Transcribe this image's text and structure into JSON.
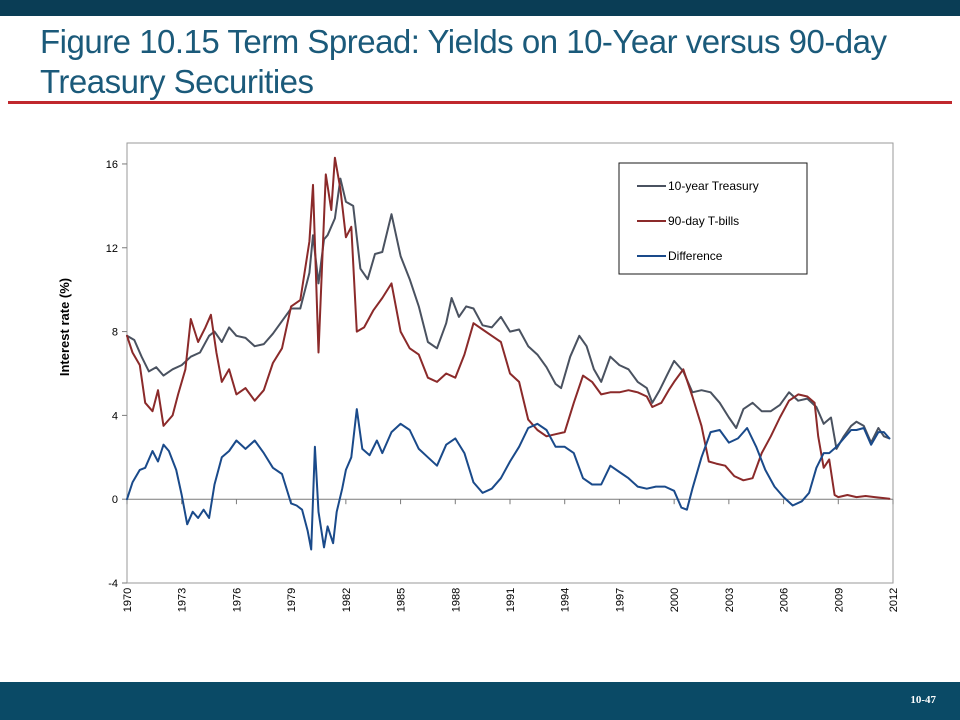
{
  "slide": {
    "title": "Figure 10.15 Term Spread: Yields on 10-Year versus 90-day Treasury Securities",
    "page_number": "10-47"
  },
  "colors": {
    "header_bar": "#0a3d55",
    "footer_bar": "#0a4a66",
    "title_text": "#1b5a7a",
    "title_rule": "#c0282d"
  },
  "chart_data": {
    "type": "line",
    "title": "",
    "xlabel": "",
    "ylabel": "Interest rate (%)",
    "xlim": [
      1970,
      2012
    ],
    "ylim": [
      -4,
      17
    ],
    "x_ticks": [
      1970,
      1973,
      1976,
      1979,
      1982,
      1985,
      1988,
      1991,
      1994,
      1997,
      2000,
      2003,
      2006,
      2009,
      2012
    ],
    "y_ticks": [
      -4,
      0,
      4,
      8,
      12,
      16
    ],
    "grid": false,
    "legend_position": "top-right",
    "series": [
      {
        "name": "10-year Treasury",
        "color": "#4a5260",
        "points": [
          [
            1970.0,
            7.8
          ],
          [
            1970.4,
            7.6
          ],
          [
            1970.8,
            6.8
          ],
          [
            1971.2,
            6.1
          ],
          [
            1971.6,
            6.3
          ],
          [
            1972.0,
            5.9
          ],
          [
            1972.5,
            6.2
          ],
          [
            1973.0,
            6.4
          ],
          [
            1973.5,
            6.8
          ],
          [
            1974.0,
            7.0
          ],
          [
            1974.5,
            7.8
          ],
          [
            1974.8,
            8.0
          ],
          [
            1975.2,
            7.5
          ],
          [
            1975.6,
            8.2
          ],
          [
            1976.0,
            7.8
          ],
          [
            1976.5,
            7.7
          ],
          [
            1977.0,
            7.3
          ],
          [
            1977.5,
            7.4
          ],
          [
            1978.0,
            7.9
          ],
          [
            1978.5,
            8.5
          ],
          [
            1979.0,
            9.1
          ],
          [
            1979.5,
            9.1
          ],
          [
            1980.0,
            10.8
          ],
          [
            1980.2,
            12.6
          ],
          [
            1980.5,
            10.3
          ],
          [
            1980.8,
            12.4
          ],
          [
            1981.0,
            12.6
          ],
          [
            1981.4,
            13.4
          ],
          [
            1981.7,
            15.3
          ],
          [
            1982.0,
            14.2
          ],
          [
            1982.4,
            14.0
          ],
          [
            1982.8,
            11.0
          ],
          [
            1983.2,
            10.5
          ],
          [
            1983.6,
            11.7
          ],
          [
            1984.0,
            11.8
          ],
          [
            1984.5,
            13.6
          ],
          [
            1985.0,
            11.6
          ],
          [
            1985.5,
            10.5
          ],
          [
            1986.0,
            9.2
          ],
          [
            1986.5,
            7.5
          ],
          [
            1987.0,
            7.2
          ],
          [
            1987.5,
            8.4
          ],
          [
            1987.8,
            9.6
          ],
          [
            1988.2,
            8.7
          ],
          [
            1988.6,
            9.2
          ],
          [
            1989.0,
            9.1
          ],
          [
            1989.5,
            8.3
          ],
          [
            1990.0,
            8.2
          ],
          [
            1990.5,
            8.7
          ],
          [
            1991.0,
            8.0
          ],
          [
            1991.5,
            8.1
          ],
          [
            1992.0,
            7.3
          ],
          [
            1992.5,
            6.9
          ],
          [
            1993.0,
            6.3
          ],
          [
            1993.5,
            5.5
          ],
          [
            1993.8,
            5.3
          ],
          [
            1994.3,
            6.8
          ],
          [
            1994.8,
            7.8
          ],
          [
            1995.2,
            7.3
          ],
          [
            1995.6,
            6.2
          ],
          [
            1996.0,
            5.6
          ],
          [
            1996.5,
            6.8
          ],
          [
            1997.0,
            6.4
          ],
          [
            1997.5,
            6.2
          ],
          [
            1998.0,
            5.6
          ],
          [
            1998.5,
            5.3
          ],
          [
            1998.8,
            4.6
          ],
          [
            1999.2,
            5.2
          ],
          [
            1999.6,
            5.9
          ],
          [
            2000.0,
            6.6
          ],
          [
            2000.5,
            6.1
          ],
          [
            2001.0,
            5.1
          ],
          [
            2001.5,
            5.2
          ],
          [
            2002.0,
            5.1
          ],
          [
            2002.5,
            4.6
          ],
          [
            2003.0,
            3.9
          ],
          [
            2003.4,
            3.4
          ],
          [
            2003.8,
            4.3
          ],
          [
            2004.3,
            4.6
          ],
          [
            2004.8,
            4.2
          ],
          [
            2005.3,
            4.2
          ],
          [
            2005.8,
            4.5
          ],
          [
            2006.3,
            5.1
          ],
          [
            2006.8,
            4.7
          ],
          [
            2007.3,
            4.8
          ],
          [
            2007.8,
            4.4
          ],
          [
            2008.2,
            3.6
          ],
          [
            2008.6,
            3.9
          ],
          [
            2008.9,
            2.4
          ],
          [
            2009.3,
            3.0
          ],
          [
            2009.7,
            3.5
          ],
          [
            2010.0,
            3.7
          ],
          [
            2010.4,
            3.5
          ],
          [
            2010.8,
            2.7
          ],
          [
            2011.2,
            3.4
          ],
          [
            2011.5,
            3.0
          ],
          [
            2011.8,
            2.9
          ]
        ]
      },
      {
        "name": "90-day T-bills",
        "color": "#8b2a2a",
        "points": [
          [
            1970.0,
            7.8
          ],
          [
            1970.3,
            7.0
          ],
          [
            1970.7,
            6.4
          ],
          [
            1971.0,
            4.6
          ],
          [
            1971.4,
            4.2
          ],
          [
            1971.7,
            5.2
          ],
          [
            1972.0,
            3.5
          ],
          [
            1972.5,
            4.0
          ],
          [
            1972.8,
            5.0
          ],
          [
            1973.2,
            6.2
          ],
          [
            1973.5,
            8.6
          ],
          [
            1973.9,
            7.5
          ],
          [
            1974.3,
            8.2
          ],
          [
            1974.6,
            8.8
          ],
          [
            1974.9,
            7.0
          ],
          [
            1975.2,
            5.6
          ],
          [
            1975.6,
            6.2
          ],
          [
            1976.0,
            5.0
          ],
          [
            1976.5,
            5.3
          ],
          [
            1977.0,
            4.7
          ],
          [
            1977.5,
            5.2
          ],
          [
            1978.0,
            6.5
          ],
          [
            1978.5,
            7.2
          ],
          [
            1979.0,
            9.2
          ],
          [
            1979.5,
            9.5
          ],
          [
            1980.0,
            12.3
          ],
          [
            1980.2,
            15.0
          ],
          [
            1980.5,
            7.0
          ],
          [
            1980.9,
            15.5
          ],
          [
            1981.2,
            13.8
          ],
          [
            1981.4,
            16.3
          ],
          [
            1981.7,
            14.8
          ],
          [
            1982.0,
            12.5
          ],
          [
            1982.3,
            13.0
          ],
          [
            1982.6,
            8.0
          ],
          [
            1983.0,
            8.2
          ],
          [
            1983.5,
            9.0
          ],
          [
            1984.0,
            9.6
          ],
          [
            1984.5,
            10.3
          ],
          [
            1985.0,
            8.0
          ],
          [
            1985.5,
            7.2
          ],
          [
            1986.0,
            6.9
          ],
          [
            1986.5,
            5.8
          ],
          [
            1987.0,
            5.6
          ],
          [
            1987.5,
            6.0
          ],
          [
            1988.0,
            5.8
          ],
          [
            1988.5,
            6.9
          ],
          [
            1989.0,
            8.4
          ],
          [
            1989.5,
            8.1
          ],
          [
            1990.0,
            7.8
          ],
          [
            1990.5,
            7.5
          ],
          [
            1991.0,
            6.0
          ],
          [
            1991.5,
            5.6
          ],
          [
            1992.0,
            3.8
          ],
          [
            1992.5,
            3.3
          ],
          [
            1993.0,
            3.0
          ],
          [
            1993.5,
            3.1
          ],
          [
            1994.0,
            3.2
          ],
          [
            1994.5,
            4.6
          ],
          [
            1995.0,
            5.9
          ],
          [
            1995.5,
            5.6
          ],
          [
            1996.0,
            5.0
          ],
          [
            1996.5,
            5.1
          ],
          [
            1997.0,
            5.1
          ],
          [
            1997.5,
            5.2
          ],
          [
            1998.0,
            5.1
          ],
          [
            1998.5,
            4.9
          ],
          [
            1998.8,
            4.4
          ],
          [
            1999.3,
            4.6
          ],
          [
            1999.7,
            5.2
          ],
          [
            2000.0,
            5.6
          ],
          [
            2000.5,
            6.2
          ],
          [
            2001.0,
            4.9
          ],
          [
            2001.5,
            3.5
          ],
          [
            2001.9,
            1.8
          ],
          [
            2002.3,
            1.7
          ],
          [
            2002.8,
            1.6
          ],
          [
            2003.3,
            1.1
          ],
          [
            2003.8,
            0.9
          ],
          [
            2004.3,
            1.0
          ],
          [
            2004.8,
            2.2
          ],
          [
            2005.3,
            3.0
          ],
          [
            2005.8,
            3.9
          ],
          [
            2006.3,
            4.7
          ],
          [
            2006.8,
            5.0
          ],
          [
            2007.3,
            4.9
          ],
          [
            2007.7,
            4.6
          ],
          [
            2007.9,
            3.0
          ],
          [
            2008.2,
            1.5
          ],
          [
            2008.5,
            1.9
          ],
          [
            2008.8,
            0.2
          ],
          [
            2009.0,
            0.1
          ],
          [
            2009.5,
            0.2
          ],
          [
            2010.0,
            0.1
          ],
          [
            2010.5,
            0.15
          ],
          [
            2011.0,
            0.1
          ],
          [
            2011.5,
            0.05
          ],
          [
            2011.8,
            0.02
          ]
        ]
      },
      {
        "name": "Difference",
        "color": "#1a4a8a",
        "points": [
          [
            1970.0,
            0.0
          ],
          [
            1970.3,
            0.8
          ],
          [
            1970.7,
            1.4
          ],
          [
            1971.0,
            1.5
          ],
          [
            1971.4,
            2.3
          ],
          [
            1971.7,
            1.8
          ],
          [
            1972.0,
            2.6
          ],
          [
            1972.3,
            2.3
          ],
          [
            1972.7,
            1.4
          ],
          [
            1973.0,
            0.2
          ],
          [
            1973.3,
            -1.2
          ],
          [
            1973.6,
            -0.6
          ],
          [
            1973.9,
            -0.9
          ],
          [
            1974.2,
            -0.5
          ],
          [
            1974.5,
            -0.9
          ],
          [
            1974.8,
            0.7
          ],
          [
            1975.2,
            2.0
          ],
          [
            1975.6,
            2.3
          ],
          [
            1976.0,
            2.8
          ],
          [
            1976.5,
            2.4
          ],
          [
            1977.0,
            2.8
          ],
          [
            1977.5,
            2.2
          ],
          [
            1978.0,
            1.5
          ],
          [
            1978.5,
            1.2
          ],
          [
            1979.0,
            -0.2
          ],
          [
            1979.3,
            -0.3
          ],
          [
            1979.6,
            -0.5
          ],
          [
            1979.9,
            -1.5
          ],
          [
            1980.1,
            -2.4
          ],
          [
            1980.3,
            2.5
          ],
          [
            1980.5,
            -0.6
          ],
          [
            1980.8,
            -2.3
          ],
          [
            1981.0,
            -1.3
          ],
          [
            1981.3,
            -2.1
          ],
          [
            1981.5,
            -0.6
          ],
          [
            1981.8,
            0.5
          ],
          [
            1982.0,
            1.4
          ],
          [
            1982.3,
            2.0
          ],
          [
            1982.6,
            4.3
          ],
          [
            1982.9,
            2.4
          ],
          [
            1983.3,
            2.1
          ],
          [
            1983.7,
            2.8
          ],
          [
            1984.0,
            2.2
          ],
          [
            1984.5,
            3.2
          ],
          [
            1985.0,
            3.6
          ],
          [
            1985.5,
            3.3
          ],
          [
            1986.0,
            2.4
          ],
          [
            1986.5,
            2.0
          ],
          [
            1987.0,
            1.6
          ],
          [
            1987.5,
            2.6
          ],
          [
            1988.0,
            2.9
          ],
          [
            1988.5,
            2.2
          ],
          [
            1989.0,
            0.8
          ],
          [
            1989.5,
            0.3
          ],
          [
            1990.0,
            0.5
          ],
          [
            1990.5,
            1.0
          ],
          [
            1991.0,
            1.8
          ],
          [
            1991.5,
            2.5
          ],
          [
            1992.0,
            3.4
          ],
          [
            1992.5,
            3.6
          ],
          [
            1993.0,
            3.3
          ],
          [
            1993.5,
            2.5
          ],
          [
            1994.0,
            2.5
          ],
          [
            1994.5,
            2.2
          ],
          [
            1995.0,
            1.0
          ],
          [
            1995.5,
            0.7
          ],
          [
            1996.0,
            0.7
          ],
          [
            1996.5,
            1.6
          ],
          [
            1997.0,
            1.3
          ],
          [
            1997.5,
            1.0
          ],
          [
            1998.0,
            0.6
          ],
          [
            1998.5,
            0.5
          ],
          [
            1999.0,
            0.6
          ],
          [
            1999.5,
            0.6
          ],
          [
            2000.0,
            0.4
          ],
          [
            2000.4,
            -0.4
          ],
          [
            2000.7,
            -0.5
          ],
          [
            2001.0,
            0.5
          ],
          [
            2001.5,
            2.0
          ],
          [
            2002.0,
            3.2
          ],
          [
            2002.5,
            3.3
          ],
          [
            2003.0,
            2.7
          ],
          [
            2003.5,
            2.9
          ],
          [
            2004.0,
            3.4
          ],
          [
            2004.5,
            2.5
          ],
          [
            2005.0,
            1.4
          ],
          [
            2005.5,
            0.6
          ],
          [
            2006.0,
            0.1
          ],
          [
            2006.5,
            -0.3
          ],
          [
            2007.0,
            -0.1
          ],
          [
            2007.4,
            0.3
          ],
          [
            2007.8,
            1.5
          ],
          [
            2008.2,
            2.2
          ],
          [
            2008.5,
            2.2
          ],
          [
            2008.9,
            2.5
          ],
          [
            2009.3,
            2.9
          ],
          [
            2009.7,
            3.3
          ],
          [
            2010.0,
            3.3
          ],
          [
            2010.4,
            3.4
          ],
          [
            2010.8,
            2.6
          ],
          [
            2011.2,
            3.2
          ],
          [
            2011.5,
            3.2
          ],
          [
            2011.8,
            2.9
          ]
        ]
      }
    ]
  }
}
